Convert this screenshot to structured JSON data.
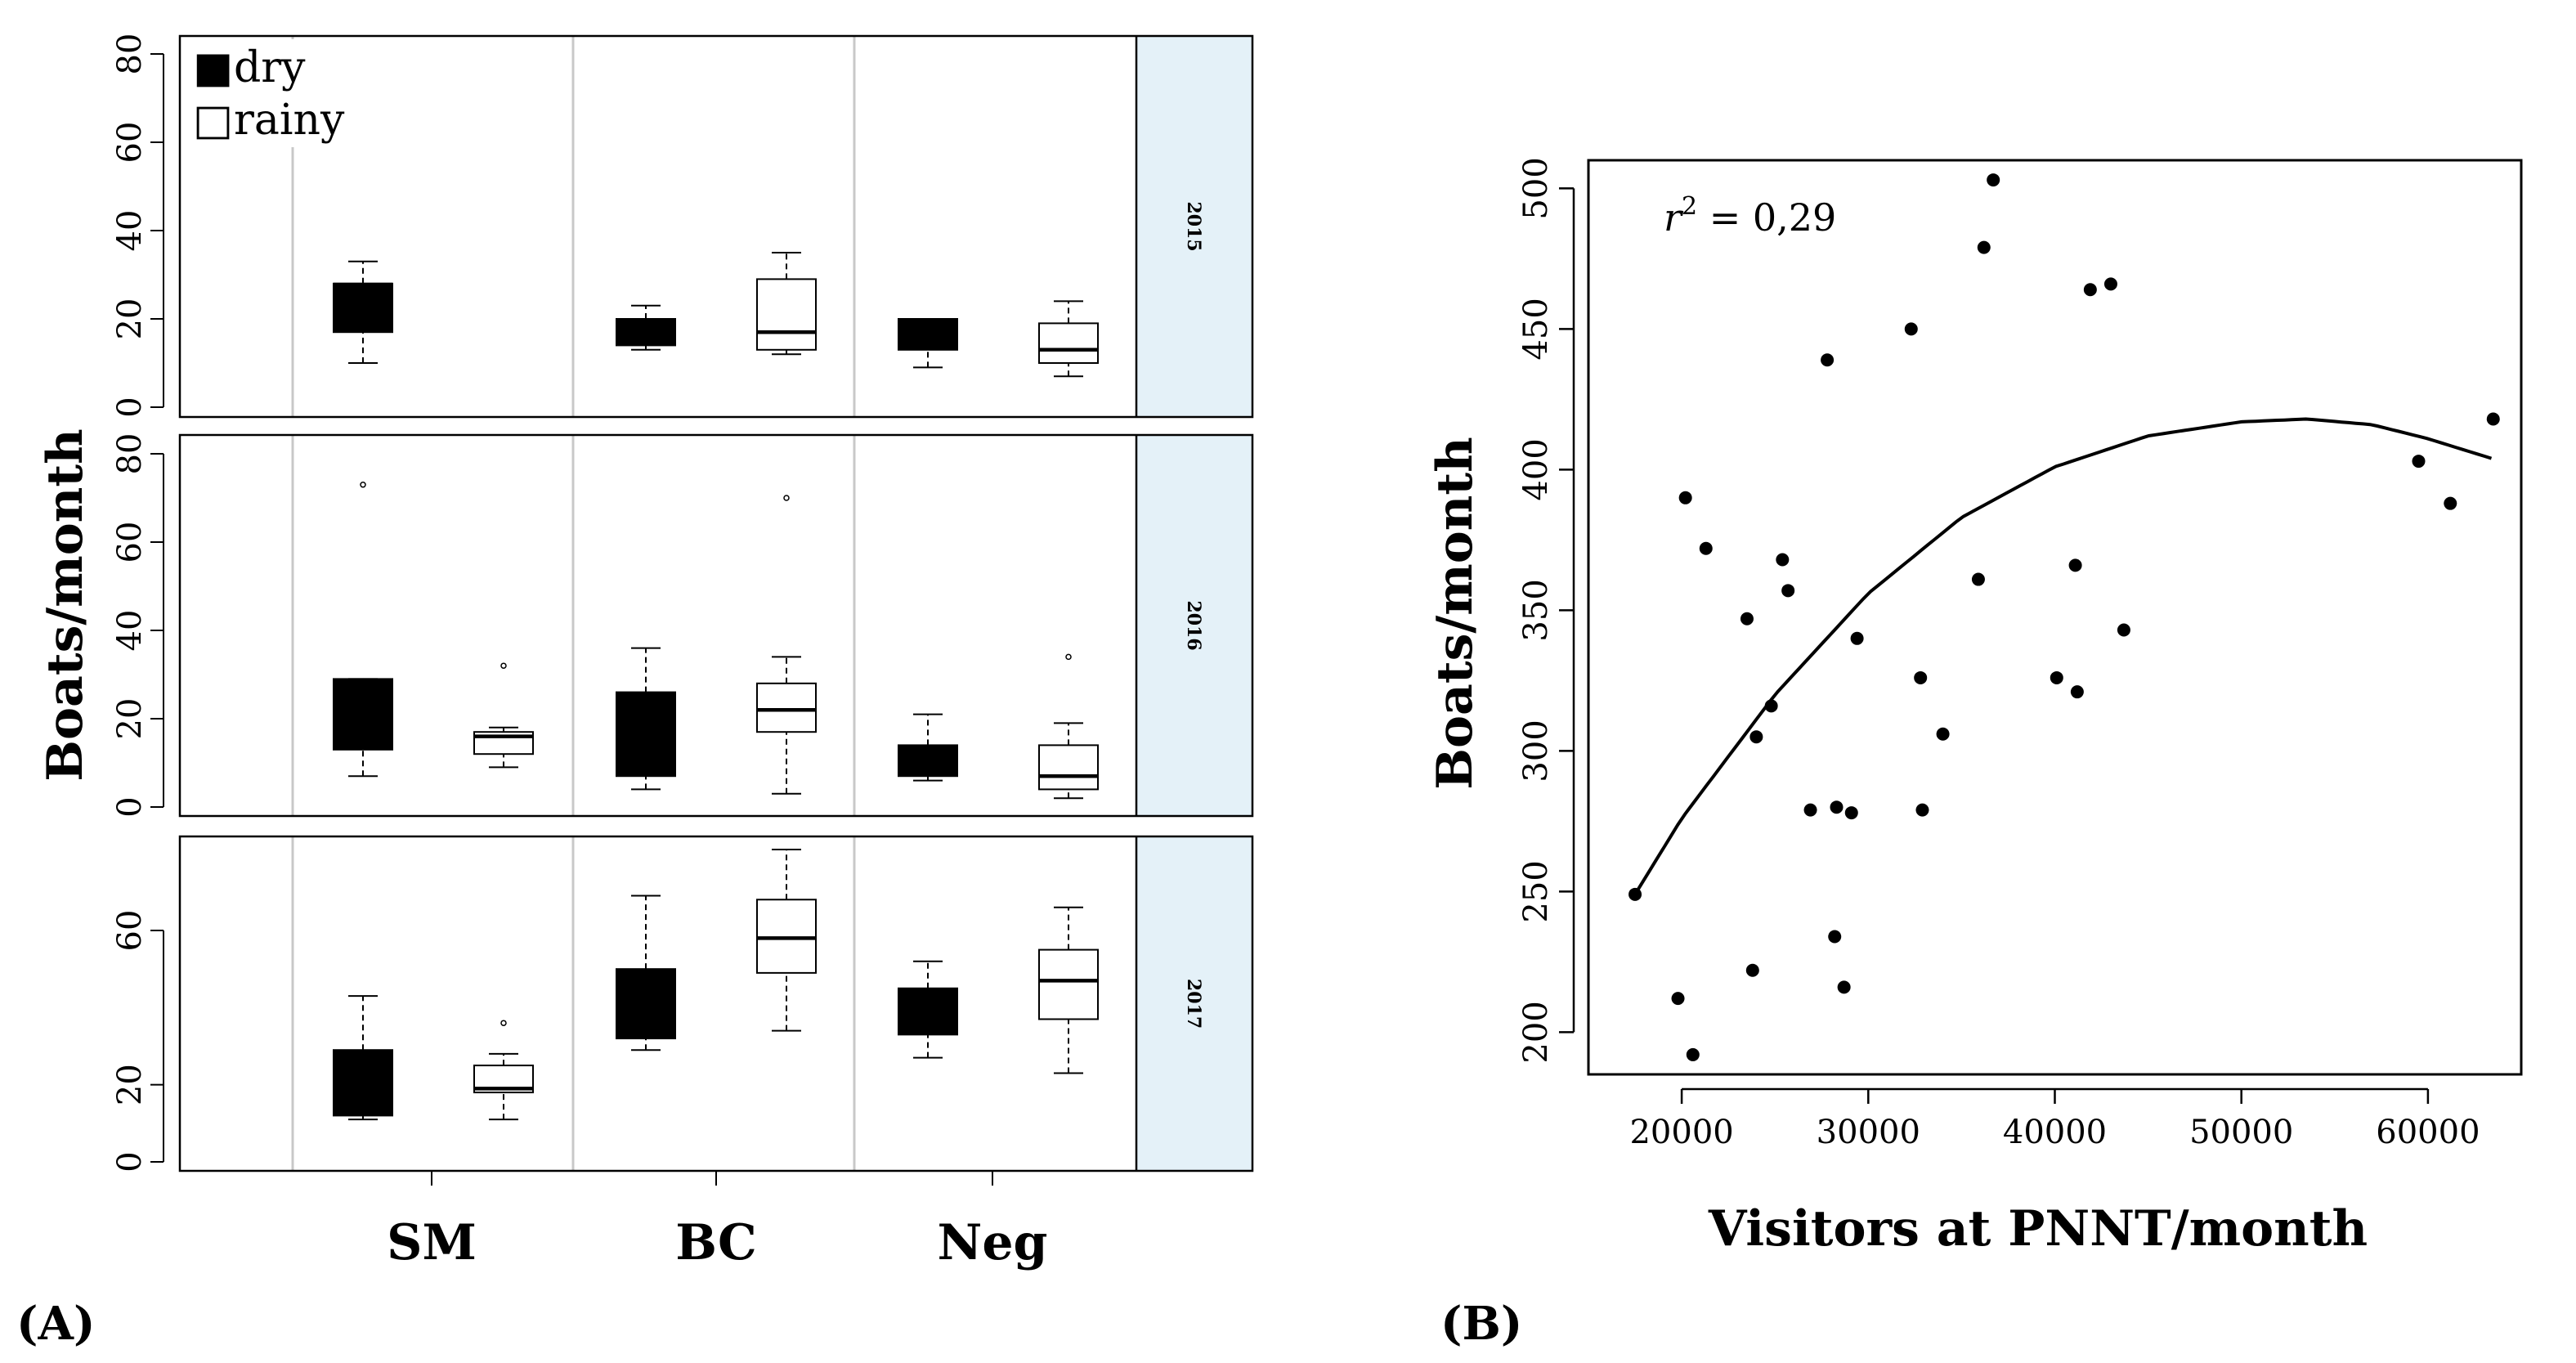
{
  "panel_labels": {
    "a": "(A)",
    "b": "(B)"
  },
  "chart_data": [
    {
      "type": "boxplot",
      "panel": "(A)",
      "ylabel": "Boats/month",
      "groups": [
        "SM",
        "BC",
        "Neg"
      ],
      "legend": [
        {
          "label": "dry",
          "fill": "#000000"
        },
        {
          "label": "rainy",
          "fill": "#ffffff"
        }
      ],
      "legend_symbols": {
        "dry": "■",
        "rainy": "□"
      },
      "facets": [
        {
          "label": "2015",
          "ylim": [
            0,
            80
          ],
          "yticks": [
            0,
            20,
            40,
            60,
            80
          ],
          "boxes": [
            {
              "group": "SM",
              "season": "dry",
              "min": 10,
              "q1": 17,
              "median": 28,
              "q3": 28,
              "max": 33,
              "outliers": []
            },
            {
              "group": "BC",
              "season": "dry",
              "min": 13,
              "q1": 14,
              "median": 19,
              "q3": 20,
              "max": 23,
              "outliers": []
            },
            {
              "group": "BC",
              "season": "rainy",
              "min": 12,
              "q1": 13,
              "median": 17,
              "q3": 29,
              "max": 35,
              "outliers": []
            },
            {
              "group": "Neg",
              "season": "dry",
              "min": 9,
              "q1": 13,
              "median": 19,
              "q3": 20,
              "max": 20,
              "outliers": []
            },
            {
              "group": "Neg",
              "season": "rainy",
              "min": 7,
              "q1": 10,
              "median": 13,
              "q3": 19,
              "max": 24,
              "outliers": []
            }
          ]
        },
        {
          "label": "2016",
          "ylim": [
            0,
            80
          ],
          "yticks": [
            0,
            20,
            40,
            60,
            80
          ],
          "boxes": [
            {
              "group": "SM",
              "season": "dry",
              "min": 7,
              "q1": 13,
              "median": 28,
              "q3": 29,
              "max": 29,
              "outliers": [
                73
              ]
            },
            {
              "group": "SM",
              "season": "rainy",
              "min": 9,
              "q1": 12,
              "median": 16,
              "q3": 17,
              "max": 18,
              "outliers": [
                32
              ]
            },
            {
              "group": "BC",
              "season": "dry",
              "min": 4,
              "q1": 7,
              "median": 25,
              "q3": 26,
              "max": 36,
              "outliers": []
            },
            {
              "group": "BC",
              "season": "rainy",
              "min": 3,
              "q1": 17,
              "median": 22,
              "q3": 28,
              "max": 34,
              "outliers": [
                70
              ]
            },
            {
              "group": "Neg",
              "season": "dry",
              "min": 6,
              "q1": 7,
              "median": 13,
              "q3": 14,
              "max": 21,
              "outliers": []
            },
            {
              "group": "Neg",
              "season": "rainy",
              "min": 2,
              "q1": 4,
              "median": 7,
              "q3": 14,
              "max": 19,
              "outliers": [
                34
              ]
            }
          ]
        },
        {
          "label": "2017",
          "ylim": [
            0,
            82
          ],
          "yticks": [
            0,
            20,
            60
          ],
          "boxes": [
            {
              "group": "SM",
              "season": "dry",
              "min": 11,
              "q1": 12,
              "median": 28,
              "q3": 29,
              "max": 43,
              "outliers": []
            },
            {
              "group": "SM",
              "season": "rainy",
              "min": 11,
              "q1": 18,
              "median": 19,
              "q3": 25,
              "max": 28,
              "outliers": [
                36
              ]
            },
            {
              "group": "BC",
              "season": "dry",
              "min": 29,
              "q1": 32,
              "median": 48,
              "q3": 50,
              "max": 69,
              "outliers": []
            },
            {
              "group": "BC",
              "season": "rainy",
              "min": 34,
              "q1": 49,
              "median": 58,
              "q3": 68,
              "max": 81,
              "outliers": []
            },
            {
              "group": "Neg",
              "season": "dry",
              "min": 27,
              "q1": 33,
              "median": 44,
              "q3": 45,
              "max": 52,
              "outliers": []
            },
            {
              "group": "Neg",
              "season": "rainy",
              "min": 23,
              "q1": 37,
              "median": 47,
              "q3": 55,
              "max": 66,
              "outliers": []
            }
          ]
        }
      ]
    },
    {
      "type": "scatter",
      "panel": "(B)",
      "xlabel": "Visitors at PNNT/month",
      "ylabel": "Boats/month",
      "annotation": {
        "symbol": "r",
        "superscript": "2",
        "text": " = 0,29"
      },
      "xlim": [
        15000,
        65000
      ],
      "ylim": [
        185,
        510
      ],
      "xticks": [
        20000,
        30000,
        40000,
        50000,
        60000
      ],
      "yticks": [
        200,
        250,
        300,
        350,
        400,
        450,
        500
      ],
      "points": [
        [
          17500,
          249
        ],
        [
          19800,
          212
        ],
        [
          20200,
          390
        ],
        [
          20600,
          192
        ],
        [
          21300,
          372
        ],
        [
          23500,
          347
        ],
        [
          23800,
          222
        ],
        [
          24000,
          305
        ],
        [
          24800,
          316
        ],
        [
          25400,
          368
        ],
        [
          25700,
          357
        ],
        [
          26900,
          279
        ],
        [
          27800,
          439
        ],
        [
          28200,
          234
        ],
        [
          28300,
          280
        ],
        [
          28700,
          216
        ],
        [
          29100,
          278
        ],
        [
          29400,
          340
        ],
        [
          32300,
          450
        ],
        [
          32800,
          326
        ],
        [
          32900,
          279
        ],
        [
          34000,
          306
        ],
        [
          35900,
          361
        ],
        [
          36200,
          479
        ],
        [
          36700,
          503
        ],
        [
          40100,
          326
        ],
        [
          41100,
          366
        ],
        [
          41200,
          321
        ],
        [
          41900,
          464
        ],
        [
          43000,
          466
        ],
        [
          43700,
          343
        ],
        [
          59500,
          403
        ],
        [
          61200,
          388
        ],
        [
          63500,
          418
        ]
      ],
      "fit": {
        "type": "quadratic",
        "x": [
          17500,
          20000,
          25000,
          30000,
          35000,
          40000,
          45000,
          50000,
          53500,
          57000,
          60000,
          63400
        ],
        "y": [
          249,
          276,
          320,
          356,
          383,
          401,
          412,
          417,
          418,
          416,
          411,
          404
        ]
      }
    }
  ]
}
